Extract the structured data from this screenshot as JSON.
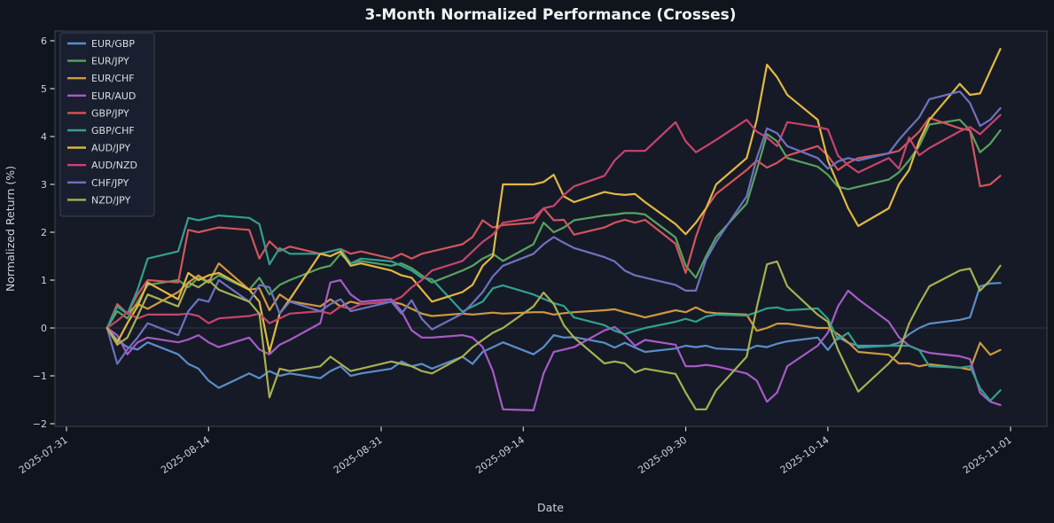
{
  "chart_data": {
    "type": "line",
    "title": "3-Month Normalized Performance (Crosses)",
    "xlabel": "Date",
    "ylabel": "Normalized Return (%)",
    "legend_position": "upper left",
    "grid": false,
    "zero_line": true,
    "ylim": [
      -2.06,
      6.2
    ],
    "xlim": [
      "2025-07-31",
      "2025-11-01"
    ],
    "y_ticks": [
      -2,
      -1,
      0,
      1,
      2,
      3,
      4,
      5,
      6
    ],
    "x_tick_labels": [
      "2025-07-31",
      "2025-08-14",
      "2025-08-31",
      "2025-09-14",
      "2025-09-30",
      "2025-10-14",
      "2025-11-01"
    ],
    "dates": [
      "2025-08-04",
      "2025-08-05",
      "2025-08-06",
      "2025-08-07",
      "2025-08-08",
      "2025-08-11",
      "2025-08-12",
      "2025-08-13",
      "2025-08-14",
      "2025-08-15",
      "2025-08-18",
      "2025-08-19",
      "2025-08-20",
      "2025-08-21",
      "2025-08-22",
      "2025-08-25",
      "2025-08-26",
      "2025-08-27",
      "2025-08-28",
      "2025-08-29",
      "2025-09-01",
      "2025-09-02",
      "2025-09-03",
      "2025-09-04",
      "2025-09-05",
      "2025-09-08",
      "2025-09-09",
      "2025-09-10",
      "2025-09-11",
      "2025-09-12",
      "2025-09-15",
      "2025-09-16",
      "2025-09-17",
      "2025-09-18",
      "2025-09-19",
      "2025-09-22",
      "2025-09-23",
      "2025-09-24",
      "2025-09-25",
      "2025-09-26",
      "2025-09-29",
      "2025-09-30",
      "2025-10-01",
      "2025-10-02",
      "2025-10-03",
      "2025-10-06",
      "2025-10-07",
      "2025-10-08",
      "2025-10-09",
      "2025-10-10",
      "2025-10-13",
      "2025-10-14",
      "2025-10-15",
      "2025-10-16",
      "2025-10-17",
      "2025-10-20",
      "2025-10-21",
      "2025-10-22",
      "2025-10-23",
      "2025-10-24",
      "2025-10-27",
      "2025-10-28",
      "2025-10-29",
      "2025-10-30",
      "2025-10-31"
    ],
    "series": [
      {
        "name": "EUR/GBP",
        "color": "#5b8dc9",
        "values": [
          0.0,
          -0.25,
          -0.4,
          -0.45,
          -0.3,
          -0.55,
          -0.75,
          -0.85,
          -1.1,
          -1.25,
          -0.95,
          -1.05,
          -0.9,
          -1.0,
          -0.95,
          -1.05,
          -0.9,
          -0.8,
          -1.0,
          -0.95,
          -0.85,
          -0.7,
          -0.8,
          -0.75,
          -0.85,
          -0.6,
          -0.75,
          -0.5,
          -0.4,
          -0.3,
          -0.55,
          -0.4,
          -0.15,
          -0.2,
          -0.19,
          -0.31,
          -0.41,
          -0.31,
          -0.41,
          -0.5,
          -0.43,
          -0.37,
          -0.4,
          -0.37,
          -0.43,
          -0.46,
          -0.37,
          -0.4,
          -0.33,
          -0.28,
          -0.2,
          -0.46,
          -0.19,
          -0.31,
          -0.37,
          -0.37,
          -0.31,
          -0.13,
          0.0,
          0.09,
          0.17,
          0.22,
          0.87,
          0.93,
          0.94
        ]
      },
      {
        "name": "EUR/JPY",
        "color": "#57a35f",
        "values": [
          0.0,
          0.35,
          0.2,
          0.55,
          0.9,
          1.0,
          0.85,
          1.05,
          0.95,
          1.1,
          0.8,
          1.05,
          0.7,
          0.9,
          1.0,
          1.25,
          1.3,
          1.55,
          1.35,
          1.4,
          1.3,
          1.35,
          1.25,
          1.1,
          0.95,
          1.2,
          1.3,
          1.45,
          1.55,
          1.4,
          1.75,
          2.2,
          2.0,
          2.1,
          2.25,
          2.35,
          2.37,
          2.4,
          2.4,
          2.37,
          1.89,
          1.3,
          1.05,
          1.5,
          1.9,
          2.6,
          3.3,
          4.05,
          3.9,
          3.55,
          3.37,
          3.2,
          2.95,
          2.9,
          2.95,
          3.1,
          3.25,
          3.5,
          3.8,
          4.25,
          4.35,
          4.13,
          3.67,
          3.85,
          4.13
        ]
      },
      {
        "name": "EUR/CHF",
        "color": "#d0983f",
        "values": [
          0.0,
          0.45,
          0.3,
          0.5,
          0.4,
          0.75,
          0.95,
          1.1,
          0.95,
          1.35,
          0.8,
          0.83,
          0.37,
          0.7,
          0.56,
          0.45,
          0.6,
          0.45,
          0.55,
          0.5,
          0.55,
          0.5,
          0.4,
          0.3,
          0.25,
          0.3,
          0.28,
          0.3,
          0.32,
          0.3,
          0.33,
          0.33,
          0.28,
          0.31,
          0.33,
          0.37,
          0.39,
          0.33,
          0.28,
          0.22,
          0.37,
          0.33,
          0.43,
          0.33,
          0.31,
          0.28,
          -0.06,
          0.0,
          0.09,
          0.09,
          0.0,
          0.0,
          -0.13,
          -0.3,
          -0.5,
          -0.56,
          -0.74,
          -0.74,
          -0.8,
          -0.76,
          -0.83,
          -0.87,
          -0.31,
          -0.56,
          -0.46
        ]
      },
      {
        "name": "EUR/AUD",
        "color": "#a75bc6",
        "values": [
          0.0,
          -0.15,
          -0.55,
          -0.3,
          -0.2,
          -0.3,
          -0.24,
          -0.15,
          -0.3,
          -0.4,
          -0.2,
          -0.45,
          -0.55,
          -0.35,
          -0.25,
          0.1,
          0.95,
          1.0,
          0.7,
          0.55,
          0.6,
          0.35,
          -0.05,
          -0.2,
          -0.2,
          -0.15,
          -0.2,
          -0.4,
          -0.9,
          -1.7,
          -1.72,
          -0.95,
          -0.5,
          -0.45,
          -0.4,
          -0.05,
          0.02,
          -0.15,
          -0.37,
          -0.25,
          -0.35,
          -0.8,
          -0.8,
          -0.77,
          -0.8,
          -0.95,
          -1.1,
          -1.54,
          -1.35,
          -0.8,
          -0.37,
          -0.1,
          0.45,
          0.78,
          0.6,
          0.13,
          -0.19,
          -0.37,
          -0.46,
          -0.52,
          -0.59,
          -0.65,
          -1.35,
          -1.54,
          -1.61
        ]
      },
      {
        "name": "GBP/JPY",
        "color": "#d5545d",
        "values": [
          0.0,
          0.5,
          0.3,
          0.7,
          1.0,
          0.95,
          2.05,
          2.0,
          2.05,
          2.1,
          2.05,
          1.45,
          1.81,
          1.61,
          1.7,
          1.55,
          1.6,
          1.65,
          1.55,
          1.6,
          1.45,
          1.55,
          1.45,
          1.55,
          1.6,
          1.75,
          1.9,
          2.25,
          2.1,
          2.15,
          2.2,
          2.5,
          2.25,
          2.26,
          1.95,
          2.1,
          2.2,
          2.26,
          2.2,
          2.26,
          1.76,
          1.15,
          1.9,
          2.5,
          2.8,
          3.3,
          3.5,
          3.35,
          3.45,
          3.6,
          3.8,
          3.6,
          3.3,
          3.45,
          3.55,
          3.65,
          3.7,
          3.9,
          4.1,
          4.39,
          4.17,
          4.13,
          2.96,
          3.0,
          3.18
        ]
      },
      {
        "name": "GBP/CHF",
        "color": "#31a08f",
        "values": [
          0.0,
          0.45,
          0.3,
          0.8,
          1.45,
          1.6,
          2.3,
          2.25,
          2.3,
          2.35,
          2.3,
          2.17,
          1.33,
          1.67,
          1.55,
          1.55,
          1.6,
          1.65,
          1.35,
          1.45,
          1.39,
          1.3,
          1.2,
          1.05,
          1.02,
          0.34,
          0.45,
          0.55,
          0.83,
          0.89,
          0.7,
          0.61,
          0.52,
          0.46,
          0.22,
          0.06,
          -0.06,
          -0.13,
          -0.06,
          0.0,
          0.13,
          0.19,
          0.13,
          0.24,
          0.28,
          0.26,
          0.33,
          0.41,
          0.43,
          0.37,
          0.41,
          0.19,
          -0.24,
          -0.1,
          -0.41,
          -0.37,
          -0.37,
          -0.37,
          -0.46,
          -0.8,
          -0.83,
          -0.8,
          -1.26,
          -1.52,
          -1.3
        ]
      },
      {
        "name": "AUD/JPY",
        "color": "#e2b842",
        "values": [
          0.0,
          -0.3,
          0.1,
          0.45,
          0.95,
          0.6,
          1.15,
          1.0,
          1.1,
          1.15,
          0.8,
          0.55,
          -0.5,
          0.3,
          0.6,
          1.55,
          1.5,
          1.6,
          1.3,
          1.35,
          1.2,
          1.1,
          1.05,
          0.8,
          0.55,
          0.75,
          0.9,
          1.3,
          1.5,
          3.0,
          3.0,
          3.05,
          3.2,
          2.75,
          2.63,
          2.84,
          2.8,
          2.78,
          2.8,
          2.63,
          2.17,
          1.96,
          2.2,
          2.5,
          3.0,
          3.55,
          4.35,
          5.5,
          5.24,
          4.87,
          4.35,
          3.5,
          3.0,
          2.5,
          2.13,
          2.5,
          3.0,
          3.3,
          3.9,
          4.35,
          5.1,
          4.87,
          4.9,
          5.37,
          5.83
        ]
      },
      {
        "name": "AUD/NZD",
        "color": "#c8446e",
        "values": [
          0.0,
          0.15,
          0.33,
          0.2,
          0.28,
          0.28,
          0.3,
          0.25,
          0.1,
          0.2,
          0.25,
          0.3,
          0.1,
          0.2,
          0.3,
          0.35,
          0.3,
          0.45,
          0.4,
          0.5,
          0.55,
          0.65,
          0.85,
          1.0,
          1.2,
          1.4,
          1.6,
          1.8,
          1.95,
          2.2,
          2.3,
          2.5,
          2.55,
          2.78,
          2.96,
          3.18,
          3.5,
          3.7,
          3.7,
          3.7,
          4.3,
          3.9,
          3.67,
          3.8,
          3.93,
          4.35,
          4.1,
          3.98,
          3.8,
          4.3,
          4.2,
          4.15,
          3.6,
          3.4,
          3.25,
          3.55,
          3.33,
          3.98,
          3.61,
          3.76,
          4.11,
          4.2,
          4.05,
          4.25,
          4.45
        ]
      },
      {
        "name": "CHF/JPY",
        "color": "#6e72c0",
        "values": [
          0.0,
          -0.75,
          -0.45,
          -0.2,
          0.1,
          -0.15,
          0.35,
          0.6,
          0.55,
          1.0,
          0.55,
          0.9,
          0.85,
          0.3,
          0.55,
          0.35,
          0.5,
          0.6,
          0.35,
          0.4,
          0.55,
          0.3,
          0.58,
          0.19,
          -0.03,
          0.3,
          0.52,
          0.75,
          1.08,
          1.3,
          1.55,
          1.75,
          1.9,
          1.78,
          1.67,
          1.48,
          1.39,
          1.2,
          1.1,
          1.05,
          0.9,
          0.78,
          0.78,
          1.43,
          1.8,
          2.75,
          3.55,
          4.17,
          4.07,
          3.8,
          3.55,
          3.33,
          3.48,
          3.55,
          3.5,
          3.65,
          3.93,
          4.17,
          4.4,
          4.78,
          4.94,
          4.7,
          4.22,
          4.35,
          4.59
        ]
      },
      {
        "name": "NZD/JPY",
        "color": "#a8b050",
        "values": [
          0.0,
          -0.35,
          -0.2,
          0.25,
          0.7,
          0.45,
          0.95,
          0.85,
          1.0,
          0.8,
          0.55,
          0.3,
          -1.45,
          -0.85,
          -0.9,
          -0.8,
          -0.6,
          -0.75,
          -0.9,
          -0.85,
          -0.7,
          -0.75,
          -0.8,
          -0.9,
          -0.95,
          -0.6,
          -0.4,
          -0.25,
          -0.1,
          0.0,
          0.45,
          0.74,
          0.5,
          0.06,
          -0.2,
          -0.74,
          -0.7,
          -0.74,
          -0.93,
          -0.85,
          -0.96,
          -1.35,
          -1.7,
          -1.7,
          -1.3,
          -0.6,
          0.43,
          1.33,
          1.39,
          0.87,
          0.28,
          0.13,
          -0.45,
          -0.9,
          -1.33,
          -0.74,
          -0.5,
          0.09,
          0.5,
          0.87,
          1.2,
          1.24,
          0.78,
          1.0,
          1.3
        ]
      }
    ]
  },
  "palette": {
    "figure_bg": "#10141d",
    "plot_bg": "#151a26",
    "spine": "#3d4350",
    "zero_line": "#2d3240",
    "tick_color": "#ced1d8",
    "legend_bg": "#1b2030",
    "legend_border": "#3c4250"
  }
}
